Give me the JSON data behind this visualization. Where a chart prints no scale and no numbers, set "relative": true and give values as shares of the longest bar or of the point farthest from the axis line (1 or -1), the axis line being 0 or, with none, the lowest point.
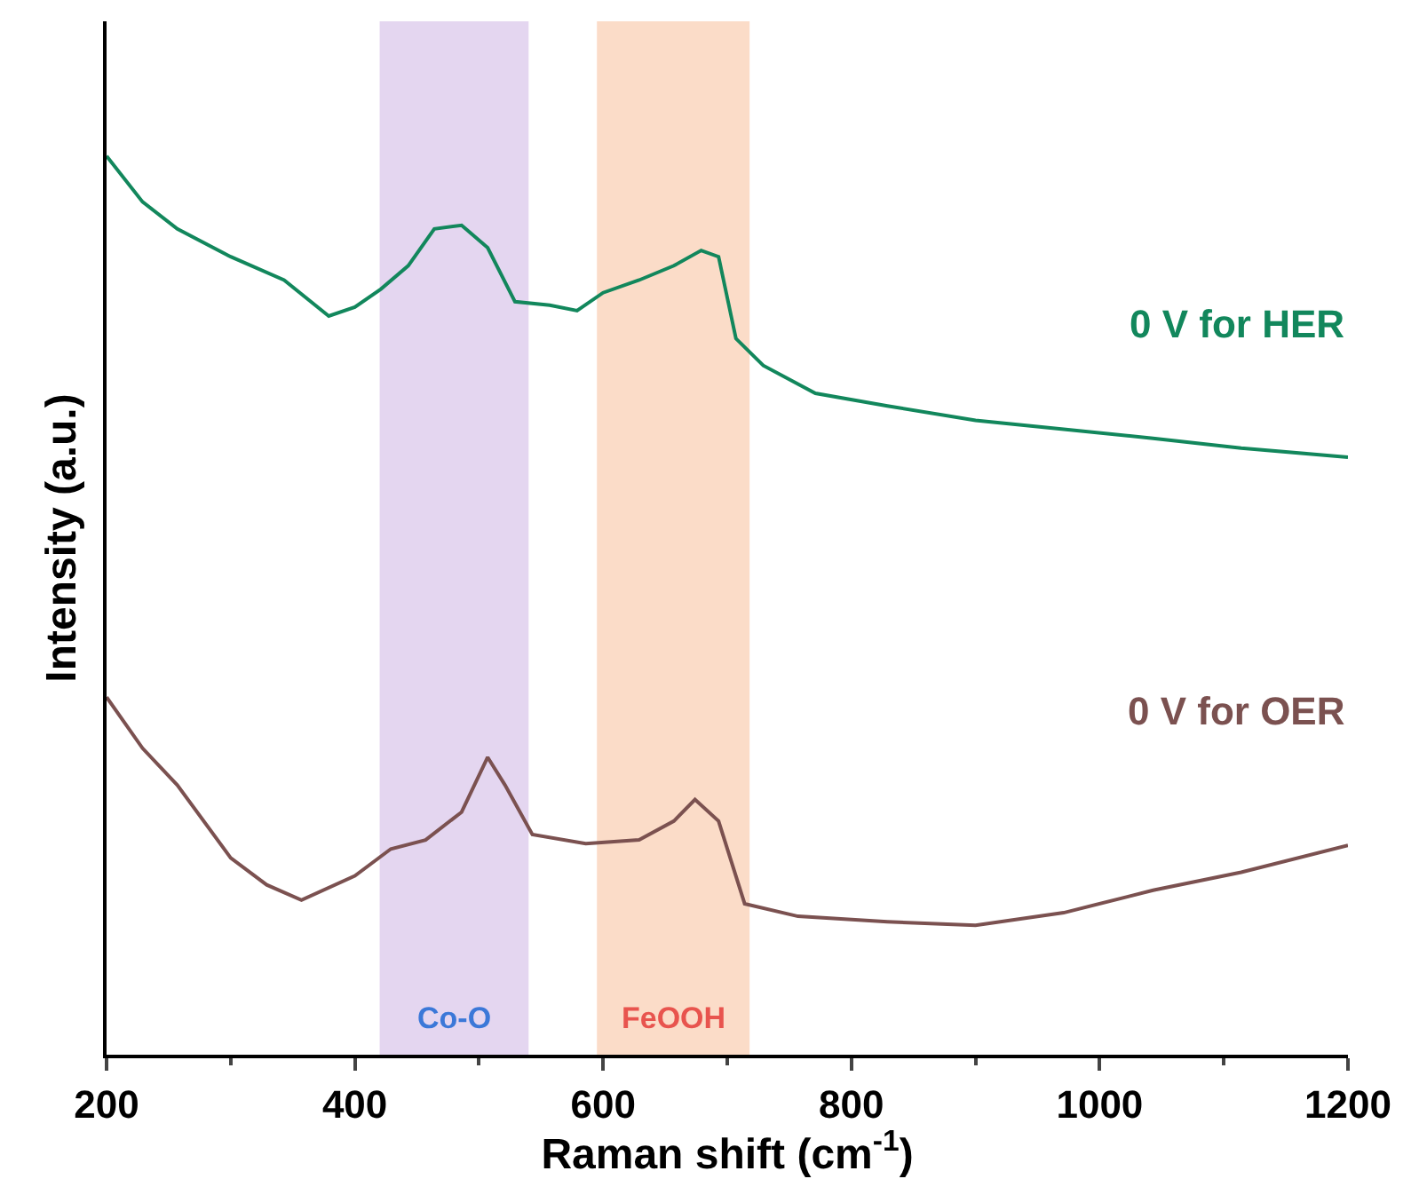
{
  "chart_data": {
    "type": "line",
    "relative": true,
    "xlabel": "Raman shift (cm$^{-1}$)",
    "ylabel": "Intensity (a.u.)",
    "xlim": [
      200,
      1200
    ],
    "xticks": [
      200,
      400,
      600,
      800,
      1000,
      1200
    ],
    "grid": false,
    "legend": false,
    "marker": "none",
    "line_style": "solid",
    "series": [
      {
        "name": "0 V for HER",
        "color": "#12875c",
        "x": [
          200,
          229,
          257,
          300,
          343,
          379,
          400,
          421,
          443,
          464,
          486,
          507,
          529,
          557,
          579,
          600,
          629,
          657,
          679,
          693,
          707,
          729,
          771,
          829,
          900,
          971,
          1043,
          1114,
          1200
        ],
        "values": [
          1.0,
          0.949,
          0.919,
          0.888,
          0.862,
          0.822,
          0.832,
          0.852,
          0.878,
          0.919,
          0.923,
          0.898,
          0.838,
          0.834,
          0.828,
          0.848,
          0.862,
          0.878,
          0.895,
          0.888,
          0.797,
          0.767,
          0.736,
          0.722,
          0.706,
          0.696,
          0.686,
          0.675,
          0.665
        ]
      },
      {
        "name": "0 V for OER",
        "color": "#7b5150",
        "x": [
          200,
          229,
          257,
          300,
          329,
          357,
          400,
          429,
          457,
          486,
          507,
          521,
          543,
          586,
          629,
          657,
          674,
          693,
          714,
          757,
          829,
          900,
          971,
          1043,
          1114,
          1200
        ],
        "values": [
          0.398,
          0.341,
          0.3,
          0.219,
          0.189,
          0.172,
          0.199,
          0.229,
          0.239,
          0.27,
          0.331,
          0.3,
          0.245,
          0.235,
          0.239,
          0.26,
          0.284,
          0.26,
          0.168,
          0.154,
          0.148,
          0.144,
          0.158,
          0.183,
          0.203,
          0.233
        ]
      }
    ],
    "bands": [
      {
        "axis": "x",
        "from": 420,
        "to": 540,
        "label": "Co-O",
        "color": "#e4d6f0"
      },
      {
        "axis": "x",
        "from": 595,
        "to": 718,
        "label": "FeOOH",
        "color": "#fbdcc8"
      }
    ]
  }
}
